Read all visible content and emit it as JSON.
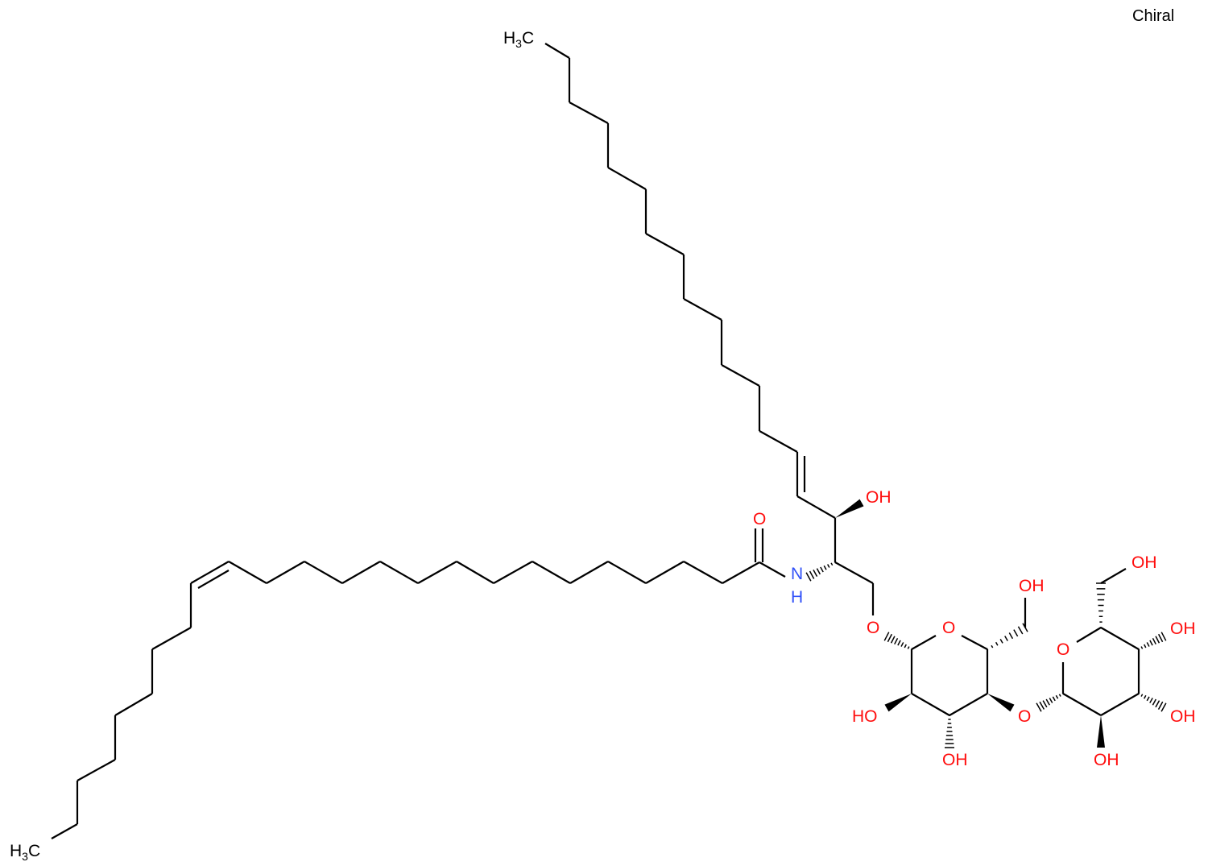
{
  "chiral_label": "Chiral",
  "colors": {
    "oxygen": "#ff0d0d",
    "nitrogen": "#3050f8",
    "carbon": "#000000"
  },
  "atoms": {
    "methyl_top": {
      "main": "H",
      "sub": "3",
      "tail": "C"
    },
    "methyl_bottom": {
      "main": "H",
      "sub": "3",
      "tail": "C"
    },
    "carbonyl_o": "O",
    "amide_n": "N",
    "amide_h": "H",
    "sphingosine_oh": "OH",
    "glycosidic_o1": "O",
    "ring1_o": "O",
    "ring1_ch2oh": "OH",
    "ring1_c2_oh": "HO",
    "ring1_c3_oh": "OH",
    "glycosidic_o2": "O",
    "ring2_o": "O",
    "ring2_ch2oh": "OH",
    "ring2_c4_oh": "OH",
    "ring2_c3_oh": "OH",
    "ring2_c2_oh": "OH"
  }
}
